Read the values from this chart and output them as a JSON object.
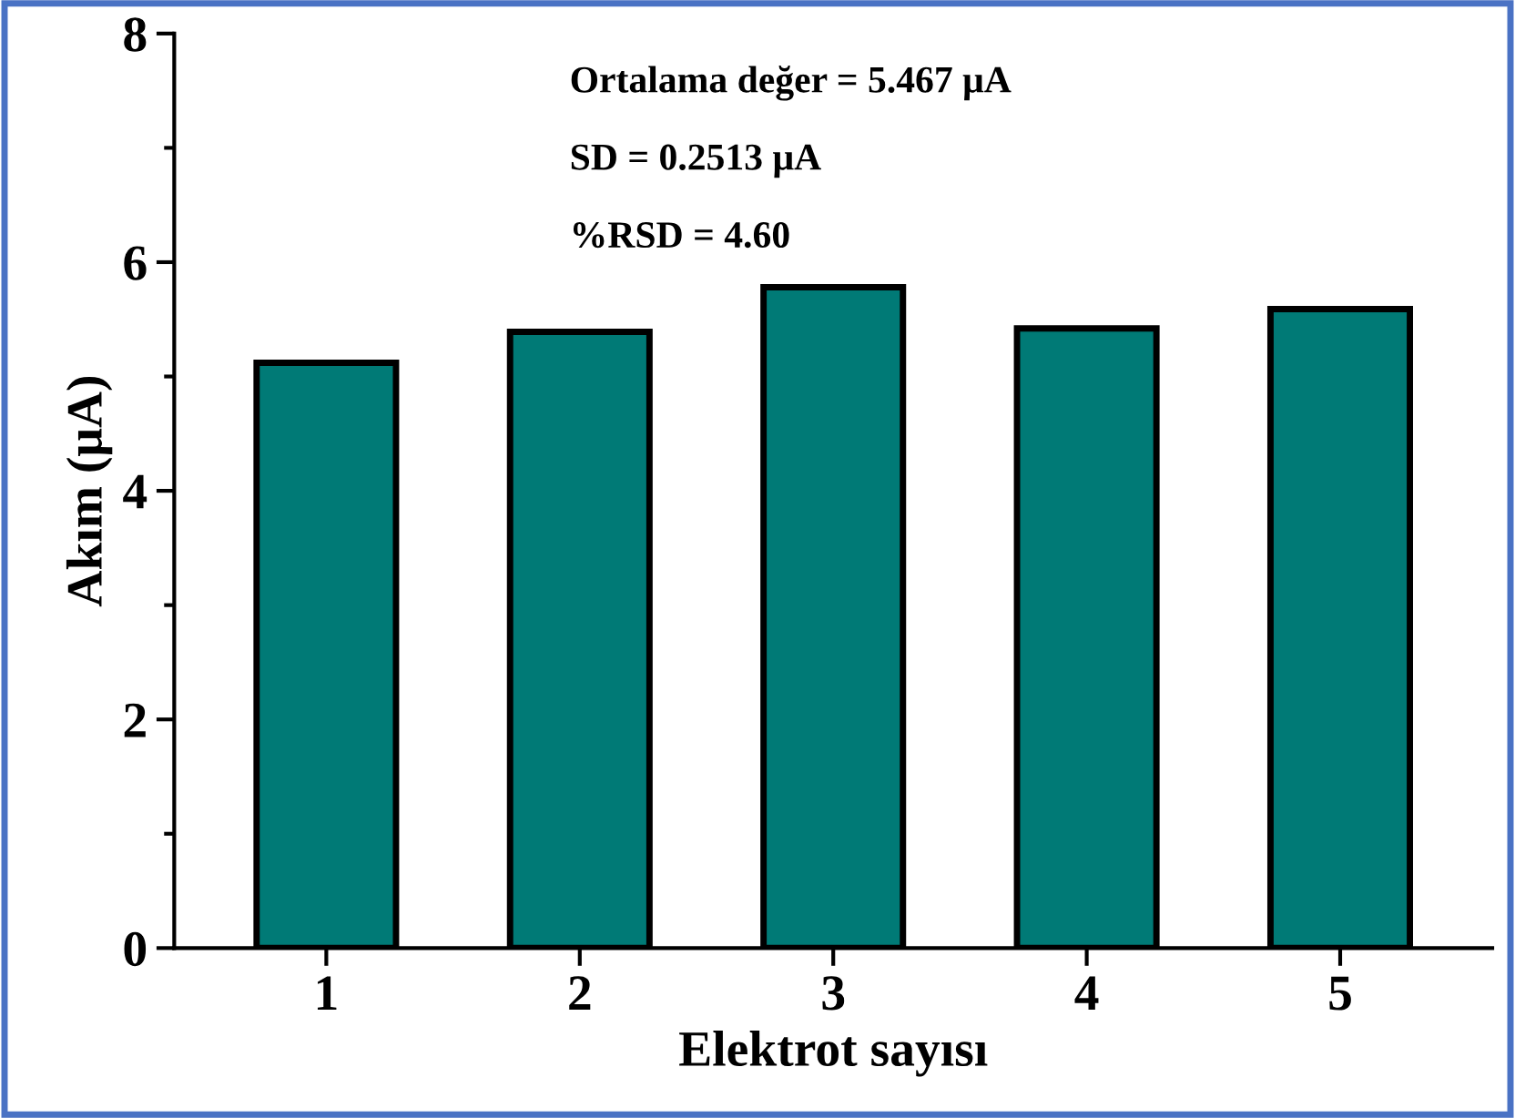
{
  "chart_data": {
    "type": "bar",
    "xlabel": "Elektrot sayısı",
    "ylabel": "Akım (μA)",
    "categories": [
      "1",
      "2",
      "3",
      "4",
      "5"
    ],
    "values": [
      5.12,
      5.39,
      5.78,
      5.42,
      5.59
    ],
    "color": "#007a76",
    "ylim": [
      0,
      8
    ],
    "yticks": [
      0,
      2,
      4,
      6,
      8
    ],
    "grid": false,
    "legend": false,
    "annotations": [
      "Ortalama değer = 5.467 μA",
      "SD = 0.2513 μA",
      "%RSD = 4.60"
    ]
  }
}
